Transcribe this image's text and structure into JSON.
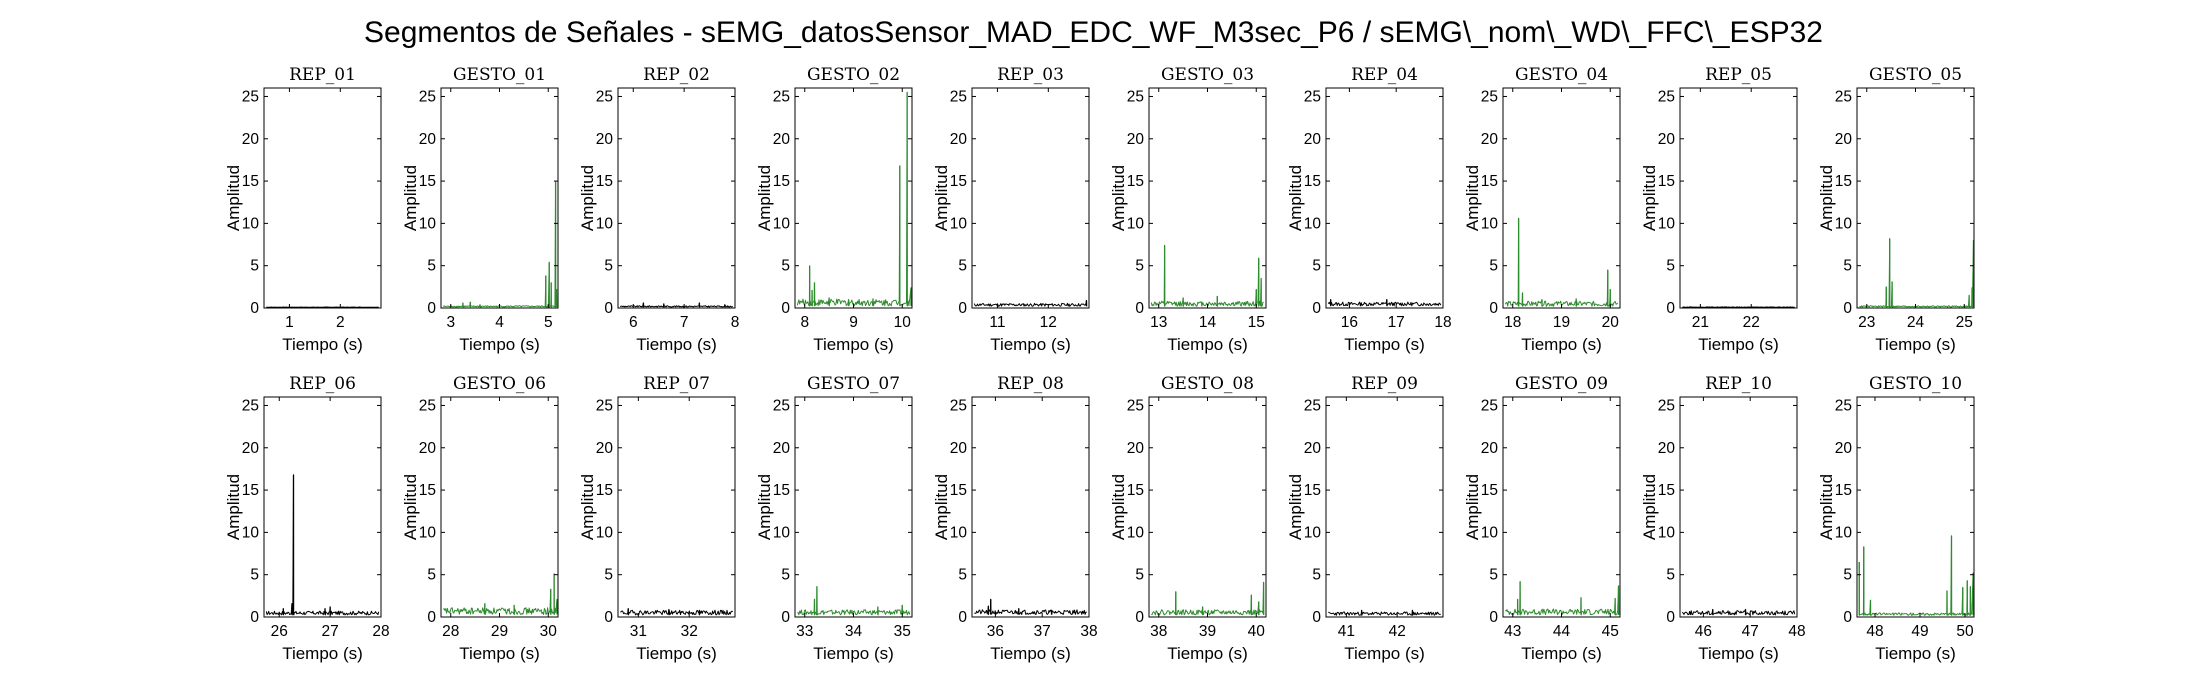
{
  "figure": {
    "title": "Segmentos de Señales - sEMG_datosSensor_MAD_EDC_WF_M3sec_P6 / sEMG\\_nom\\_WD\\_FFC\\_ESP32"
  },
  "colors": {
    "rep": "#000000",
    "gesto": "#2e8b2e",
    "axis": "#000000",
    "background": "#ffffff"
  },
  "chart_data": [
    {
      "type": "line",
      "title": "REP_01",
      "color": "black",
      "xlabel": "Tiempo (s)",
      "ylabel": "Amplitud",
      "xlim": [
        0.5,
        2.8
      ],
      "ylim": [
        0,
        26
      ],
      "xticks": [
        1,
        2
      ],
      "yticks": [
        0,
        5,
        10,
        15,
        20,
        25
      ],
      "baseline": 0.08,
      "noise": 0.04,
      "x": [],
      "y": []
    },
    {
      "type": "line",
      "title": "GESTO_01",
      "color": "green",
      "xlabel": "Tiempo (s)",
      "ylabel": "Amplitud",
      "xlim": [
        2.8,
        5.2
      ],
      "ylim": [
        0,
        26
      ],
      "xticks": [
        3,
        4,
        5
      ],
      "yticks": [
        0,
        5,
        10,
        15,
        20,
        25
      ],
      "baseline": 0.12,
      "noise": 0.15,
      "x": [
        3.25,
        3.4,
        3.6,
        4.95,
        5.02,
        5.06,
        5.15,
        5.17
      ],
      "y": [
        0.6,
        0.7,
        0.4,
        3.8,
        5.4,
        3.0,
        14.9,
        2.2
      ]
    },
    {
      "type": "line",
      "title": "REP_02",
      "color": "black",
      "xlabel": "Tiempo (s)",
      "ylabel": "Amplitud",
      "xlim": [
        5.7,
        8.0
      ],
      "ylim": [
        0,
        26
      ],
      "xticks": [
        6,
        7,
        8
      ],
      "yticks": [
        0,
        5,
        10,
        15,
        20,
        25
      ],
      "baseline": 0.12,
      "noise": 0.15,
      "x": [
        6.2,
        6.6,
        7.3,
        7.8
      ],
      "y": [
        0.6,
        0.5,
        0.6,
        0.4
      ]
    },
    {
      "type": "line",
      "title": "GESTO_02",
      "color": "green",
      "xlabel": "Tiempo (s)",
      "ylabel": "Amplitud",
      "xlim": [
        7.8,
        10.2
      ],
      "ylim": [
        0,
        26
      ],
      "xticks": [
        8,
        9,
        10
      ],
      "yticks": [
        0,
        5,
        10,
        15,
        20,
        25
      ],
      "baseline": 0.25,
      "noise": 0.8,
      "x": [
        8.1,
        8.15,
        8.2,
        8.5,
        8.9,
        9.4,
        9.95,
        10.1,
        10.18
      ],
      "y": [
        5.0,
        2.1,
        3.0,
        1.2,
        1.0,
        1.1,
        16.8,
        25.5,
        2.4
      ]
    },
    {
      "type": "line",
      "title": "REP_03",
      "color": "black",
      "xlabel": "Tiempo (s)",
      "ylabel": "Amplitud",
      "xlim": [
        10.5,
        12.8
      ],
      "ylim": [
        0,
        26
      ],
      "xticks": [
        11,
        12
      ],
      "yticks": [
        0,
        5,
        10,
        15,
        20,
        25
      ],
      "baseline": 0.2,
      "noise": 0.35,
      "x": [
        12.75
      ],
      "y": [
        0.9
      ]
    },
    {
      "type": "line",
      "title": "GESTO_03",
      "color": "green",
      "xlabel": "Tiempo (s)",
      "ylabel": "Amplitud",
      "xlim": [
        12.8,
        15.2
      ],
      "ylim": [
        0,
        26
      ],
      "xticks": [
        13,
        14,
        15
      ],
      "yticks": [
        0,
        5,
        10,
        15,
        20,
        25
      ],
      "baseline": 0.2,
      "noise": 0.6,
      "x": [
        13.12,
        13.5,
        14.2,
        15.0,
        15.05,
        15.1
      ],
      "y": [
        7.4,
        1.2,
        1.4,
        2.2,
        5.9,
        3.5
      ]
    },
    {
      "type": "line",
      "title": "REP_04",
      "color": "black",
      "xlabel": "Tiempo (s)",
      "ylabel": "Amplitud",
      "xlim": [
        15.5,
        18.0
      ],
      "ylim": [
        0,
        26
      ],
      "xticks": [
        16,
        17,
        18
      ],
      "yticks": [
        0,
        5,
        10,
        15,
        20,
        25
      ],
      "baseline": 0.25,
      "noise": 0.45,
      "x": [
        15.6,
        16.8
      ],
      "y": [
        1.0,
        1.0
      ]
    },
    {
      "type": "line",
      "title": "GESTO_04",
      "color": "green",
      "xlabel": "Tiempo (s)",
      "ylabel": "Amplitud",
      "xlim": [
        17.8,
        20.2
      ],
      "ylim": [
        0,
        26
      ],
      "xticks": [
        18,
        19,
        20
      ],
      "yticks": [
        0,
        5,
        10,
        15,
        20,
        25
      ],
      "baseline": 0.2,
      "noise": 0.6,
      "x": [
        18.12,
        18.2,
        18.6,
        19.3,
        19.95,
        20.0
      ],
      "y": [
        10.6,
        1.8,
        1.0,
        1.1,
        4.5,
        2.2
      ]
    },
    {
      "type": "line",
      "title": "REP_05",
      "color": "black",
      "xlabel": "Tiempo (s)",
      "ylabel": "Amplitud",
      "xlim": [
        20.6,
        22.9
      ],
      "ylim": [
        0,
        26
      ],
      "xticks": [
        21,
        22
      ],
      "yticks": [
        0,
        5,
        10,
        15,
        20,
        25
      ],
      "baseline": 0.08,
      "noise": 0.05,
      "x": [],
      "y": []
    },
    {
      "type": "line",
      "title": "GESTO_05",
      "color": "green",
      "xlabel": "Tiempo (s)",
      "ylabel": "Amplitud",
      "xlim": [
        22.8,
        25.2
      ],
      "ylim": [
        0,
        26
      ],
      "xticks": [
        23,
        24,
        25
      ],
      "yticks": [
        0,
        5,
        10,
        15,
        20,
        25
      ],
      "baseline": 0.12,
      "noise": 0.15,
      "x": [
        23.4,
        23.47,
        23.52,
        25.1,
        25.16,
        25.19
      ],
      "y": [
        2.5,
        8.2,
        3.1,
        1.5,
        2.4,
        8.0
      ]
    },
    {
      "type": "line",
      "title": "REP_06",
      "color": "black",
      "xlabel": "Tiempo (s)",
      "ylabel": "Amplitud",
      "xlim": [
        25.7,
        28.0
      ],
      "ylim": [
        0,
        26
      ],
      "xticks": [
        26,
        27,
        28
      ],
      "yticks": [
        0,
        5,
        10,
        15,
        20,
        25
      ],
      "baseline": 0.25,
      "noise": 0.45,
      "x": [
        26.08,
        26.25,
        26.28,
        26.9,
        27.0
      ],
      "y": [
        1.0,
        1.6,
        16.8,
        1.0,
        1.2
      ]
    },
    {
      "type": "line",
      "title": "GESTO_06",
      "color": "green",
      "xlabel": "Tiempo (s)",
      "ylabel": "Amplitud",
      "xlim": [
        27.8,
        30.2
      ],
      "ylim": [
        0,
        26
      ],
      "xticks": [
        28,
        29,
        30
      ],
      "yticks": [
        0,
        5,
        10,
        15,
        20,
        25
      ],
      "baseline": 0.3,
      "noise": 0.8,
      "x": [
        28.7,
        29.3,
        30.05,
        30.12,
        30.18
      ],
      "y": [
        1.6,
        1.4,
        3.3,
        5.1,
        2.1
      ]
    },
    {
      "type": "line",
      "title": "REP_07",
      "color": "black",
      "xlabel": "Tiempo (s)",
      "ylabel": "Amplitud",
      "xlim": [
        30.6,
        32.9
      ],
      "ylim": [
        0,
        26
      ],
      "xticks": [
        31,
        32
      ],
      "yticks": [
        0,
        5,
        10,
        15,
        20,
        25
      ],
      "baseline": 0.25,
      "noise": 0.55,
      "x": [
        30.8,
        31.6,
        32.2
      ],
      "y": [
        1.0,
        0.9,
        0.8
      ]
    },
    {
      "type": "line",
      "title": "GESTO_07",
      "color": "green",
      "xlabel": "Tiempo (s)",
      "ylabel": "Amplitud",
      "xlim": [
        32.8,
        35.2
      ],
      "ylim": [
        0,
        26
      ],
      "xticks": [
        33,
        34,
        35
      ],
      "yticks": [
        0,
        5,
        10,
        15,
        20,
        25
      ],
      "baseline": 0.25,
      "noise": 0.6,
      "x": [
        33.2,
        33.25,
        34.5,
        35.0
      ],
      "y": [
        2.1,
        3.6,
        1.2,
        1.4
      ]
    },
    {
      "type": "line",
      "title": "REP_08",
      "color": "black",
      "xlabel": "Tiempo (s)",
      "ylabel": "Amplitud",
      "xlim": [
        35.5,
        38.0
      ],
      "ylim": [
        0,
        26
      ],
      "xticks": [
        36,
        37,
        38
      ],
      "yticks": [
        0,
        5,
        10,
        15,
        20,
        25
      ],
      "baseline": 0.3,
      "noise": 0.55,
      "x": [
        35.85,
        35.9,
        36.5,
        37.2
      ],
      "y": [
        1.3,
        2.1,
        1.0,
        0.8
      ]
    },
    {
      "type": "line",
      "title": "GESTO_08",
      "color": "green",
      "xlabel": "Tiempo (s)",
      "ylabel": "Amplitud",
      "xlim": [
        37.8,
        40.2
      ],
      "ylim": [
        0,
        26
      ],
      "xticks": [
        38,
        39,
        40
      ],
      "yticks": [
        0,
        5,
        10,
        15,
        20,
        25
      ],
      "baseline": 0.25,
      "noise": 0.6,
      "x": [
        38.35,
        38.9,
        39.9,
        40.05,
        40.15
      ],
      "y": [
        3.0,
        1.2,
        2.6,
        1.8,
        4.1
      ]
    },
    {
      "type": "line",
      "title": "REP_09",
      "color": "black",
      "xlabel": "Tiempo (s)",
      "ylabel": "Amplitud",
      "xlim": [
        40.6,
        42.9
      ],
      "ylim": [
        0,
        26
      ],
      "xticks": [
        41,
        42
      ],
      "yticks": [
        0,
        5,
        10,
        15,
        20,
        25
      ],
      "baseline": 0.2,
      "noise": 0.4,
      "x": [
        41.3,
        42.3
      ],
      "y": [
        0.8,
        0.8
      ]
    },
    {
      "type": "line",
      "title": "GESTO_09",
      "color": "green",
      "xlabel": "Tiempo (s)",
      "ylabel": "Amplitud",
      "xlim": [
        42.8,
        45.2
      ],
      "ylim": [
        0,
        26
      ],
      "xticks": [
        43,
        44,
        45
      ],
      "yticks": [
        0,
        5,
        10,
        15,
        20,
        25
      ],
      "baseline": 0.25,
      "noise": 0.7,
      "x": [
        43.1,
        43.15,
        44.4,
        45.1,
        45.17
      ],
      "y": [
        2.1,
        4.2,
        2.3,
        2.2,
        3.7
      ]
    },
    {
      "type": "line",
      "title": "REP_10",
      "color": "black",
      "xlabel": "Tiempo (s)",
      "ylabel": "Amplitud",
      "xlim": [
        45.5,
        48.0
      ],
      "ylim": [
        0,
        26
      ],
      "xticks": [
        46,
        47,
        48
      ],
      "yticks": [
        0,
        5,
        10,
        15,
        20,
        25
      ],
      "baseline": 0.25,
      "noise": 0.5,
      "x": [
        46.2,
        46.9
      ],
      "y": [
        0.9,
        0.9
      ]
    },
    {
      "type": "line",
      "title": "GESTO_10",
      "color": "green",
      "xlabel": "Tiempo (s)",
      "ylabel": "Amplitud",
      "xlim": [
        47.6,
        50.2
      ],
      "ylim": [
        0,
        26
      ],
      "xticks": [
        48,
        49,
        50
      ],
      "yticks": [
        0,
        5,
        10,
        15,
        20,
        25
      ],
      "baseline": 0.2,
      "noise": 0.3,
      "x": [
        47.65,
        47.75,
        47.9,
        49.6,
        49.7,
        49.95,
        50.05,
        50.12,
        50.18
      ],
      "y": [
        6.5,
        8.3,
        2.0,
        3.1,
        9.6,
        3.5,
        4.3,
        3.6,
        5.2
      ]
    }
  ]
}
